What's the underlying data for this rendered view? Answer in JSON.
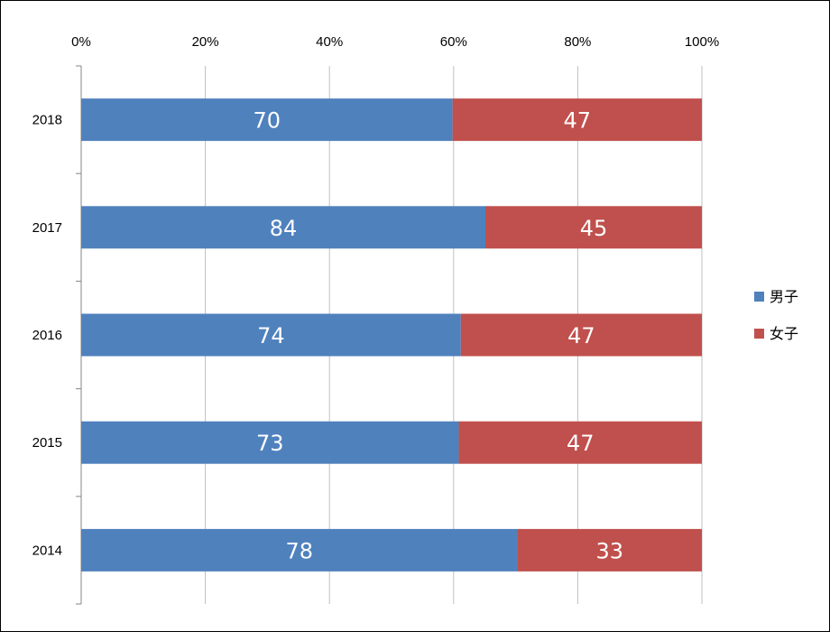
{
  "chart_data": {
    "type": "bar",
    "orientation": "horizontal",
    "stacking": "percent",
    "categories": [
      "2018",
      "2017",
      "2016",
      "2015",
      "2014"
    ],
    "series": [
      {
        "name": "男子",
        "color": "#4F81BD",
        "values": [
          70,
          84,
          74,
          73,
          78
        ]
      },
      {
        "name": "女子",
        "color": "#C0504D",
        "values": [
          47,
          45,
          47,
          47,
          33
        ]
      }
    ],
    "x_ticks": [
      "0%",
      "20%",
      "40%",
      "60%",
      "80%",
      "100%"
    ],
    "xlim": [
      0,
      100
    ],
    "x_axis_position": "top",
    "grid": true,
    "legend_position": "right"
  }
}
